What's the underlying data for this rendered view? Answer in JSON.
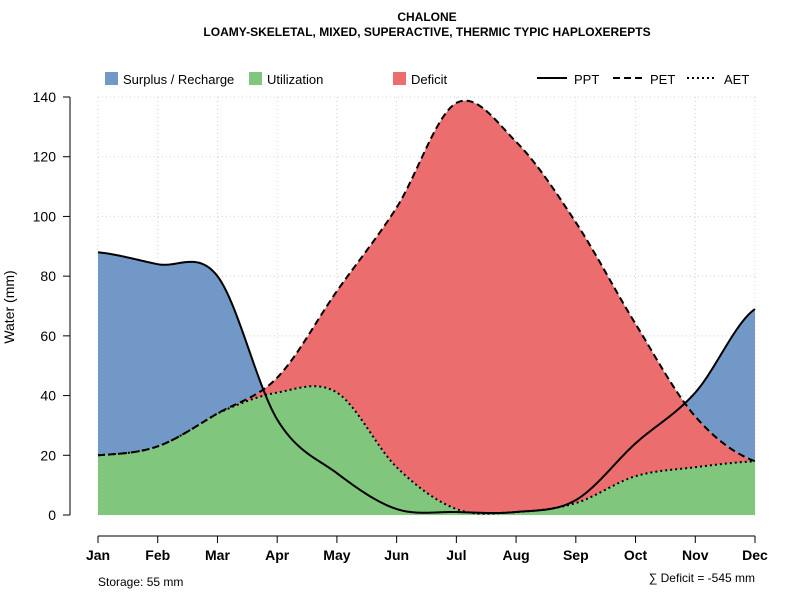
{
  "chart_data": {
    "type": "area",
    "title": "CHALONE",
    "subtitle": "LOAMY-SKELETAL, MIXED, SUPERACTIVE, THERMIC TYPIC HAPLOXEREPTS",
    "xlabel": "",
    "ylabel": "Water (mm)",
    "ylim": [
      0,
      140
    ],
    "yticks": [
      "0",
      "20",
      "40",
      "60",
      "80",
      "100",
      "120",
      "140"
    ],
    "grid": true,
    "categories": [
      "Jan",
      "Feb",
      "Mar",
      "Apr",
      "May",
      "Jun",
      "Jul",
      "Aug",
      "Sep",
      "Oct",
      "Nov",
      "Dec"
    ],
    "series": [
      {
        "name": "PPT",
        "style": "solid",
        "values": [
          88,
          84,
          80,
          32,
          14,
          2,
          1,
          1,
          5,
          24,
          41,
          69
        ]
      },
      {
        "name": "PET",
        "style": "dashed",
        "values": [
          20,
          23,
          34,
          46,
          75,
          103,
          138,
          125,
          98,
          64,
          33,
          18
        ]
      },
      {
        "name": "AET",
        "style": "dotted",
        "values": [
          20,
          23,
          34,
          41,
          41,
          16,
          2,
          1,
          4,
          13,
          16,
          18
        ]
      }
    ],
    "legend": {
      "position": "top",
      "fills": [
        {
          "label": "Surplus / Recharge",
          "color": "#7298c8"
        },
        {
          "label": "Utilization",
          "color": "#80c67c"
        },
        {
          "label": "Deficit",
          "color": "#ec6d6e"
        }
      ],
      "lines": [
        {
          "label": "PPT",
          "style": "solid"
        },
        {
          "label": "PET",
          "style": "dashed"
        },
        {
          "label": "AET",
          "style": "dotted"
        }
      ]
    },
    "annotations": {
      "storage": "Storage: 55 mm",
      "deficit": "∑ Deficit = -545 mm"
    }
  }
}
